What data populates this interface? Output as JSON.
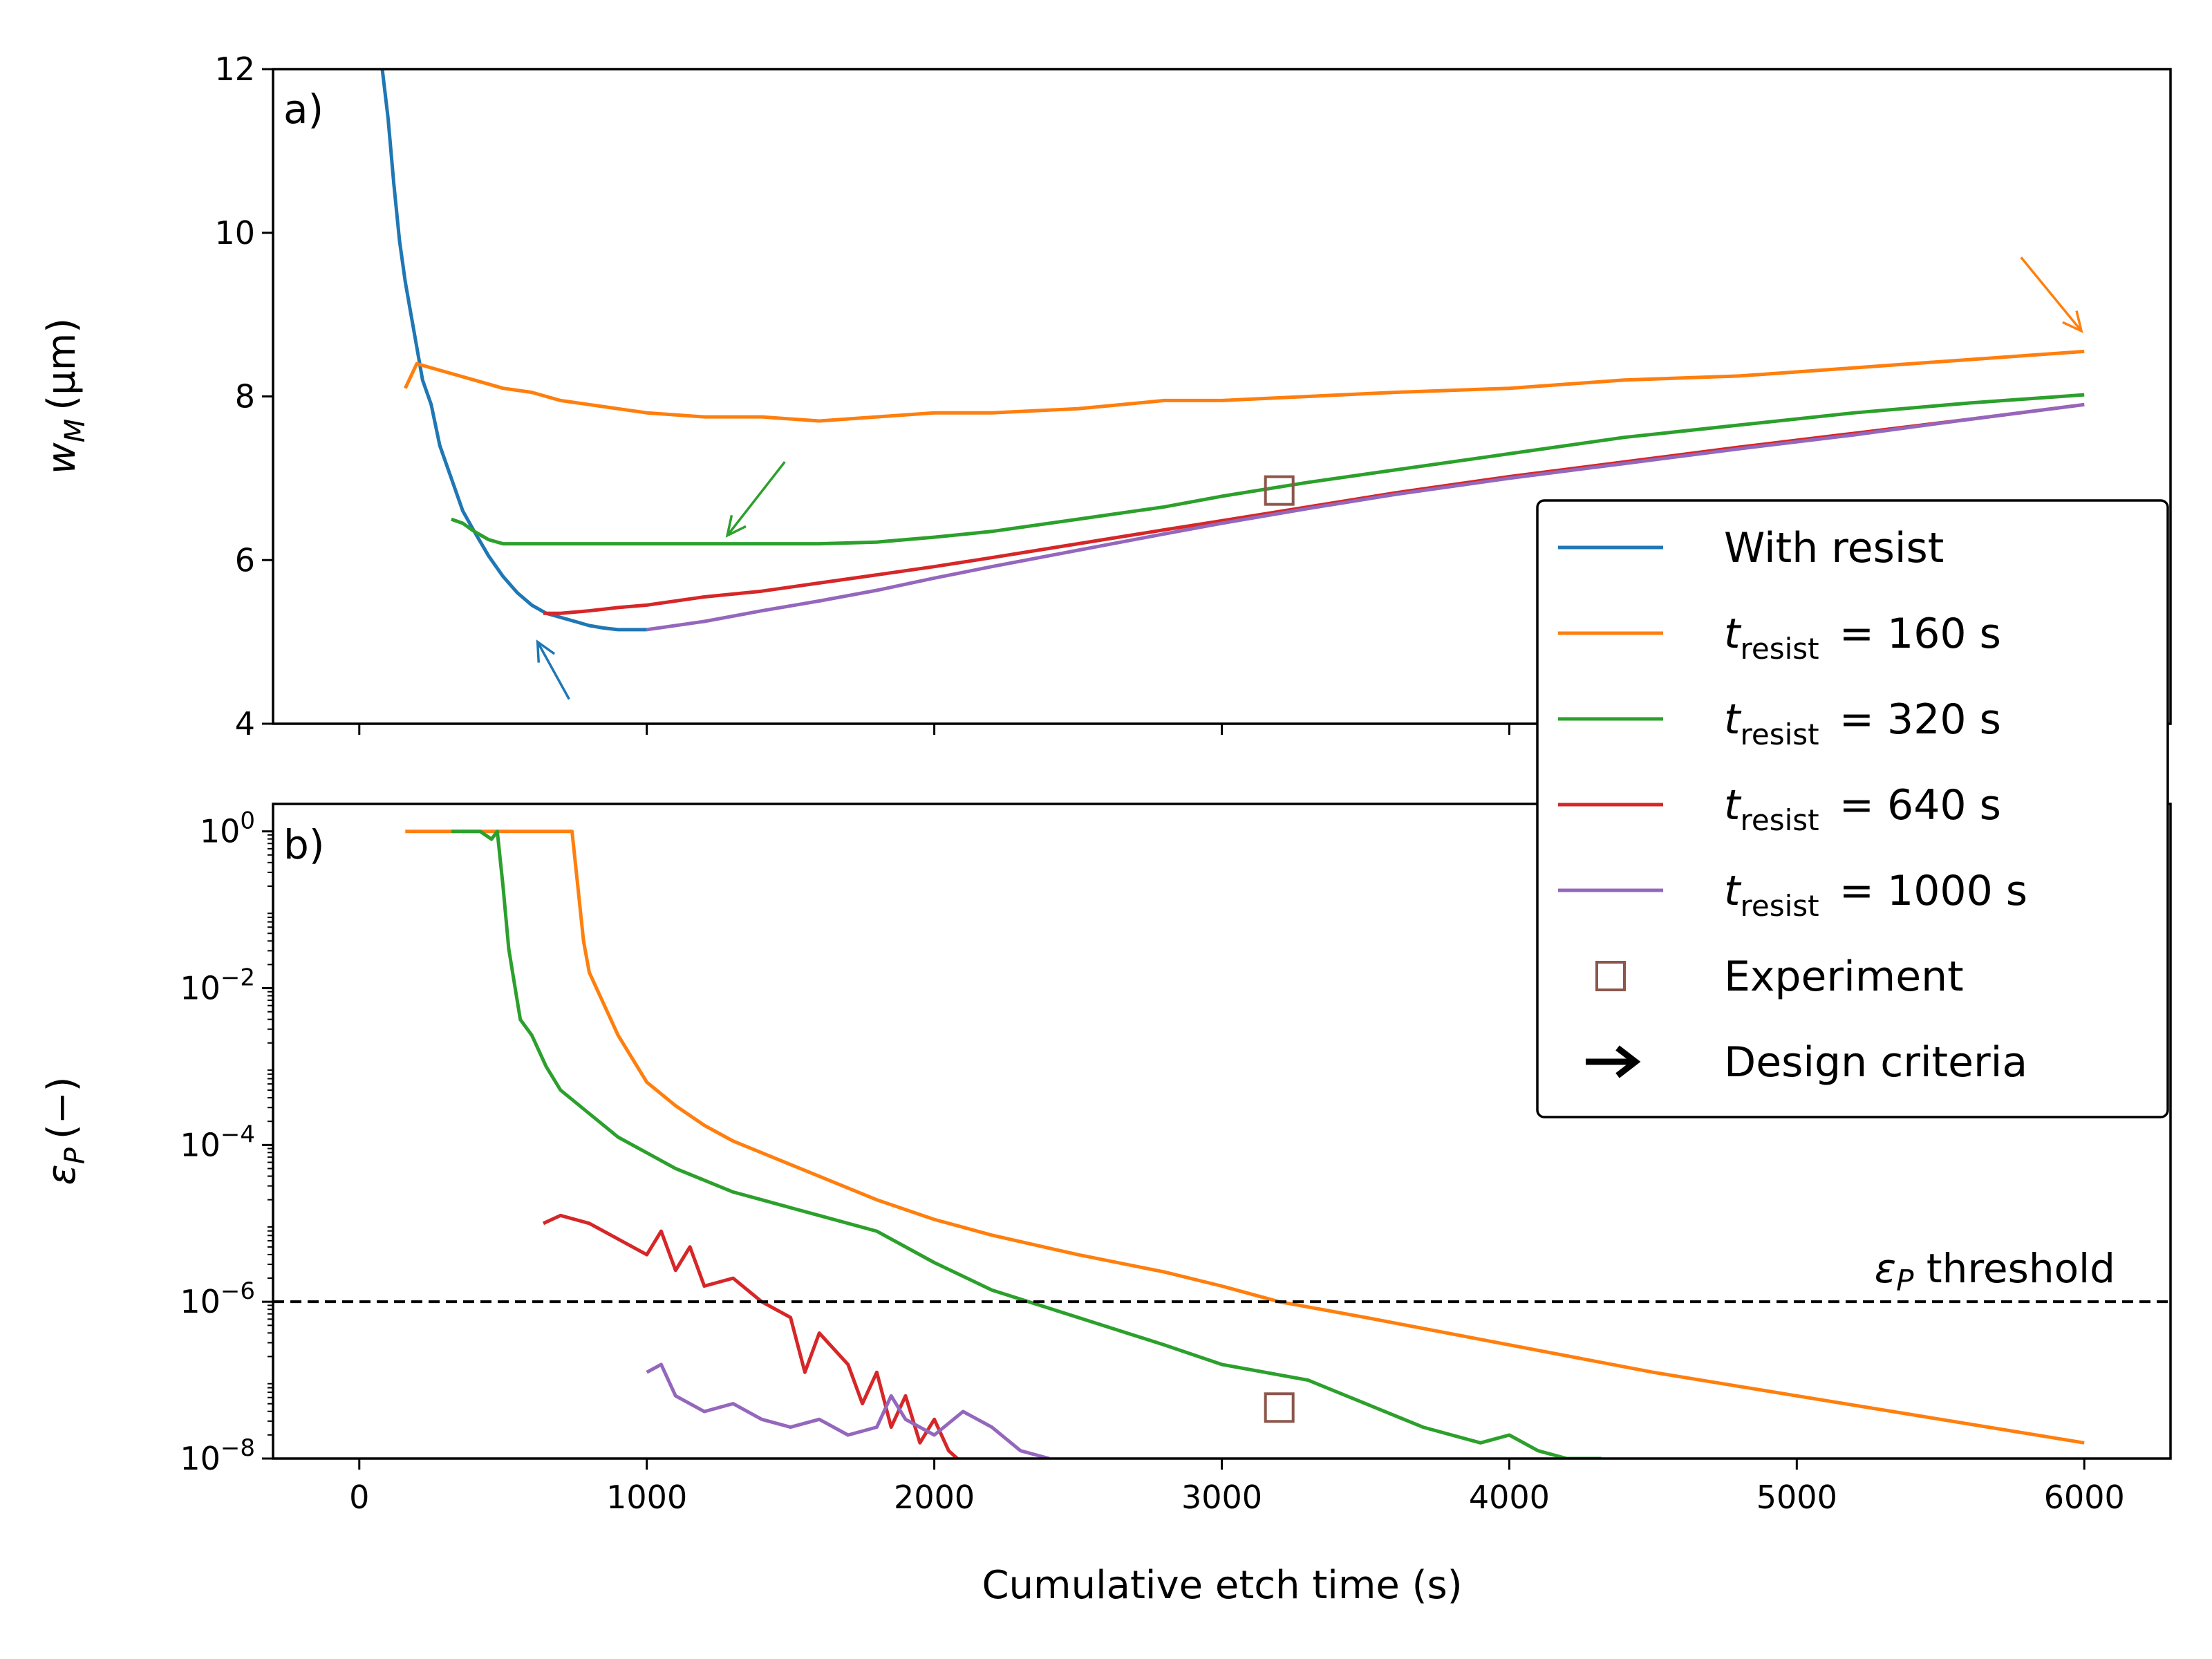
{
  "chart_data": [
    {
      "panel": "a)",
      "type": "line",
      "ylabel_symbol": "w",
      "ylabel_sub": "M",
      "ylabel_unit": "(µm)",
      "xlim": [
        -300,
        6300
      ],
      "ylim": [
        4,
        12
      ],
      "xticks": [
        0,
        1000,
        2000,
        3000,
        4000,
        5000,
        6000
      ],
      "yticks": [
        4,
        6,
        8,
        10,
        12
      ],
      "ytick_labels": [
        "4",
        "6",
        "8",
        "10",
        "12"
      ],
      "series": [
        {
          "name": "With resist",
          "color": "#1f77b4",
          "x": [
            60,
            80,
            100,
            120,
            140,
            160,
            180,
            200,
            220,
            250,
            280,
            320,
            360,
            400,
            450,
            500,
            550,
            600,
            650,
            700,
            750,
            800,
            850,
            900,
            950,
            1000
          ],
          "y": [
            12.6,
            12.0,
            11.4,
            10.6,
            9.9,
            9.4,
            9.0,
            8.6,
            8.2,
            7.9,
            7.4,
            7.0,
            6.6,
            6.35,
            6.05,
            5.8,
            5.6,
            5.45,
            5.35,
            5.3,
            5.25,
            5.2,
            5.17,
            5.15,
            5.15,
            5.15
          ]
        },
        {
          "name": "t_resist = 160 s",
          "color": "#ff7f0e",
          "x": [
            160,
            200,
            250,
            300,
            350,
            400,
            450,
            500,
            600,
            700,
            800,
            900,
            1000,
            1200,
            1400,
            1600,
            1800,
            2000,
            2200,
            2500,
            2800,
            3000,
            3300,
            3600,
            4000,
            4400,
            4800,
            5200,
            5600,
            5800,
            6000
          ],
          "y": [
            8.1,
            8.4,
            8.35,
            8.3,
            8.25,
            8.2,
            8.15,
            8.1,
            8.05,
            7.95,
            7.9,
            7.85,
            7.8,
            7.75,
            7.75,
            7.7,
            7.75,
            7.8,
            7.8,
            7.85,
            7.95,
            7.95,
            8.0,
            8.05,
            8.1,
            8.2,
            8.25,
            8.35,
            8.45,
            8.5,
            8.55
          ]
        },
        {
          "name": "t_resist = 320 s",
          "color": "#2ca02c",
          "x": [
            320,
            360,
            400,
            450,
            500,
            600,
            700,
            800,
            900,
            1000,
            1200,
            1400,
            1600,
            1800,
            2000,
            2200,
            2500,
            2800,
            3000,
            3300,
            3600,
            4000,
            4400,
            4800,
            5200,
            5600,
            6000
          ],
          "y": [
            6.5,
            6.45,
            6.35,
            6.25,
            6.2,
            6.2,
            6.2,
            6.2,
            6.2,
            6.2,
            6.2,
            6.2,
            6.2,
            6.22,
            6.28,
            6.35,
            6.5,
            6.65,
            6.78,
            6.95,
            7.1,
            7.3,
            7.5,
            7.65,
            7.8,
            7.92,
            8.02
          ]
        },
        {
          "name": "t_resist = 640 s",
          "color": "#d62728",
          "x": [
            640,
            700,
            800,
            900,
            1000,
            1200,
            1400,
            1600,
            1800,
            2000,
            2200,
            2500,
            2800,
            3000,
            3300,
            3600,
            4000,
            4400,
            4800,
            5200,
            5600,
            6000
          ],
          "y": [
            5.35,
            5.35,
            5.38,
            5.42,
            5.45,
            5.55,
            5.62,
            5.72,
            5.82,
            5.92,
            6.03,
            6.2,
            6.37,
            6.48,
            6.65,
            6.82,
            7.02,
            7.2,
            7.38,
            7.55,
            7.72,
            7.9
          ]
        },
        {
          "name": "t_resist = 1000 s",
          "color": "#9467bd",
          "x": [
            1000,
            1200,
            1400,
            1600,
            1800,
            2000,
            2200,
            2500,
            2800,
            3000,
            3300,
            3600,
            4000,
            4400,
            4800,
            5200,
            5600,
            6000
          ],
          "y": [
            5.15,
            5.25,
            5.38,
            5.5,
            5.63,
            5.78,
            5.92,
            6.12,
            6.32,
            6.45,
            6.63,
            6.8,
            7.0,
            7.18,
            7.36,
            7.53,
            7.72,
            7.9
          ]
        }
      ],
      "experiment": {
        "x": 3200,
        "y": 6.85
      },
      "arrows": [
        {
          "color": "#1f77b4",
          "from": [
            730,
            4.3
          ],
          "to": [
            620,
            5.0
          ]
        },
        {
          "color": "#ff7f0e",
          "from": [
            5780,
            9.7
          ],
          "to": [
            5990,
            8.8
          ]
        },
        {
          "color": "#2ca02c",
          "from": [
            1480,
            7.2
          ],
          "to": [
            1280,
            6.3
          ]
        }
      ]
    },
    {
      "panel": "b)",
      "type": "line",
      "yscale": "log",
      "xlabel": "Cumulative etch time (s)",
      "ylabel_symbol": "ε",
      "ylabel_sub": "P",
      "ylabel_unit": "(−)",
      "xlim": [
        -300,
        6300
      ],
      "ylim_exp": [
        -8,
        0.35
      ],
      "xticks": [
        0,
        1000,
        2000,
        3000,
        4000,
        5000,
        6000
      ],
      "xtick_labels": [
        "0",
        "1000",
        "2000",
        "3000",
        "4000",
        "5000",
        "6000"
      ],
      "ytick_exponents": [
        0,
        -2,
        -4,
        -6,
        -8
      ],
      "ytick_base": "10",
      "threshold": {
        "value_exp": -6,
        "label_symbol": "ε",
        "label_sub": "P",
        "label_text": " threshold"
      },
      "series": [
        {
          "name": "t_resist = 160 s",
          "color": "#ff7f0e",
          "x": [
            160,
            300,
            500,
            700,
            740,
            760,
            780,
            800,
            850,
            900,
            950,
            1000,
            1100,
            1200,
            1300,
            1400,
            1500,
            1600,
            1700,
            1800,
            2000,
            2200,
            2500,
            2800,
            3000,
            3200,
            3500,
            4000,
            4500,
            5000,
            5500,
            6000
          ],
          "log10y": [
            0,
            0,
            0,
            0,
            0,
            -0.7,
            -1.4,
            -1.8,
            -2.2,
            -2.6,
            -2.9,
            -3.2,
            -3.5,
            -3.75,
            -3.95,
            -4.1,
            -4.25,
            -4.4,
            -4.55,
            -4.7,
            -4.95,
            -5.15,
            -5.4,
            -5.62,
            -5.8,
            -6.0,
            -6.2,
            -6.55,
            -6.9,
            -7.2,
            -7.5,
            -7.8
          ]
        },
        {
          "name": "t_resist = 320 s",
          "color": "#2ca02c",
          "x": [
            320,
            380,
            420,
            460,
            480,
            500,
            520,
            560,
            600,
            650,
            700,
            800,
            900,
            1000,
            1100,
            1200,
            1300,
            1400,
            1500,
            1600,
            1800,
            2000,
            2200,
            2500,
            2800,
            3000,
            3300,
            3500,
            3700,
            3800,
            3900,
            4000,
            4100,
            4200,
            4320
          ],
          "log10y": [
            0,
            0,
            0,
            -0.1,
            0,
            -0.7,
            -1.5,
            -2.4,
            -2.6,
            -3.0,
            -3.3,
            -3.6,
            -3.9,
            -4.1,
            -4.3,
            -4.45,
            -4.6,
            -4.7,
            -4.8,
            -4.9,
            -5.1,
            -5.5,
            -5.85,
            -6.2,
            -6.55,
            -6.8,
            -7.0,
            -7.3,
            -7.6,
            -7.7,
            -7.8,
            -7.7,
            -7.9,
            -8.0,
            -8.0
          ]
        },
        {
          "name": "t_resist = 640 s",
          "color": "#d62728",
          "x": [
            640,
            700,
            800,
            900,
            1000,
            1050,
            1100,
            1150,
            1200,
            1300,
            1400,
            1500,
            1550,
            1600,
            1700,
            1750,
            1800,
            1850,
            1900,
            1950,
            2000,
            2050,
            2080
          ],
          "log10y": [
            -5.0,
            -4.9,
            -5.0,
            -5.2,
            -5.4,
            -5.1,
            -5.6,
            -5.3,
            -5.8,
            -5.7,
            -6.0,
            -6.2,
            -6.9,
            -6.4,
            -6.8,
            -7.3,
            -6.9,
            -7.6,
            -7.2,
            -7.8,
            -7.5,
            -7.9,
            -8.0
          ]
        },
        {
          "name": "t_resist = 1000 s",
          "color": "#9467bd",
          "x": [
            1000,
            1050,
            1100,
            1200,
            1300,
            1400,
            1500,
            1600,
            1700,
            1800,
            1850,
            1900,
            2000,
            2100,
            2200,
            2300,
            2400
          ],
          "log10y": [
            -6.9,
            -6.8,
            -7.2,
            -7.4,
            -7.3,
            -7.5,
            -7.6,
            -7.5,
            -7.7,
            -7.6,
            -7.2,
            -7.5,
            -7.7,
            -7.4,
            -7.6,
            -7.9,
            -8.0
          ]
        }
      ],
      "experiment": {
        "x": 3200,
        "log10y": -7.35
      }
    }
  ],
  "legend": {
    "placement": "center-right",
    "entries": [
      {
        "kind": "line",
        "color": "#1f77b4",
        "label": "With resist"
      },
      {
        "kind": "line",
        "color": "#ff7f0e",
        "sym": "t",
        "sub": "resist",
        "rest": " = 160 s"
      },
      {
        "kind": "line",
        "color": "#2ca02c",
        "sym": "t",
        "sub": "resist",
        "rest": " = 320 s"
      },
      {
        "kind": "line",
        "color": "#d62728",
        "sym": "t",
        "sub": "resist",
        "rest": " = 640 s"
      },
      {
        "kind": "line",
        "color": "#9467bd",
        "sym": "t",
        "sub": "resist",
        "rest": " = 1000 s"
      },
      {
        "kind": "square",
        "color": "#8c564b",
        "label": "Experiment"
      },
      {
        "kind": "arrow",
        "color": "#000000",
        "label": "Design criteria"
      }
    ]
  },
  "colors": {
    "experiment": "#8c564b",
    "threshold_line": "#000000"
  }
}
